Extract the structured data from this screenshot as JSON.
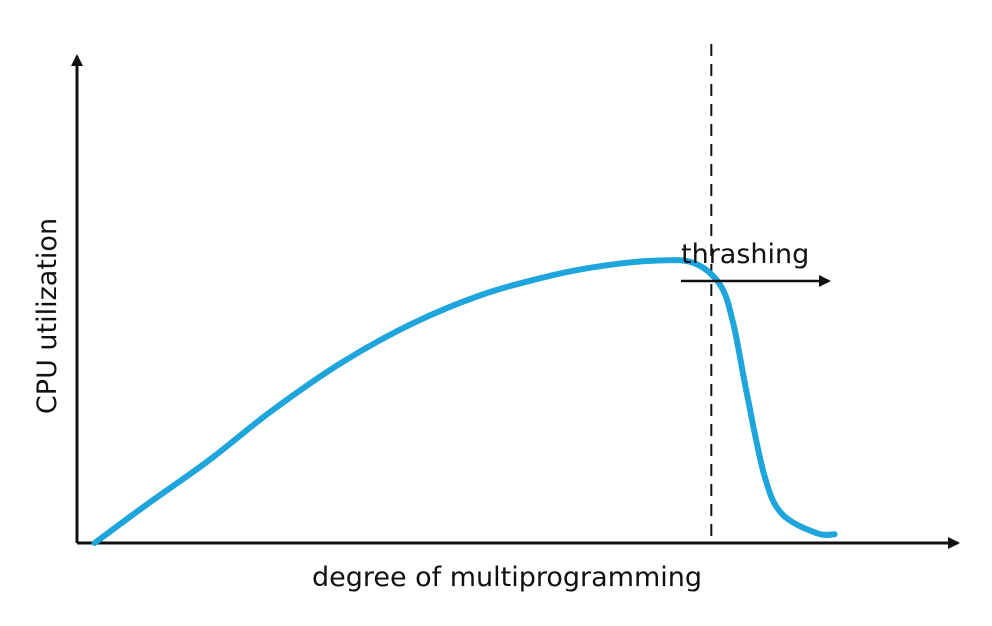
{
  "chart_data": {
    "type": "line",
    "title": "",
    "xlabel": "degree of multiprogramming",
    "ylabel": "CPU utilization",
    "grid": false,
    "series": [
      {
        "name": "",
        "color": "#1ea5dc",
        "points": [
          {
            "x": 0.02,
            "y": 0.0
          },
          {
            "x": 0.08,
            "y": 0.08
          },
          {
            "x": 0.15,
            "y": 0.17
          },
          {
            "x": 0.22,
            "y": 0.27
          },
          {
            "x": 0.3,
            "y": 0.37
          },
          {
            "x": 0.38,
            "y": 0.45
          },
          {
            "x": 0.46,
            "y": 0.51
          },
          {
            "x": 0.54,
            "y": 0.55
          },
          {
            "x": 0.6,
            "y": 0.57
          },
          {
            "x": 0.66,
            "y": 0.58
          },
          {
            "x": 0.7,
            "y": 0.575
          },
          {
            "x": 0.73,
            "y": 0.53
          },
          {
            "x": 0.745,
            "y": 0.45
          },
          {
            "x": 0.76,
            "y": 0.31
          },
          {
            "x": 0.78,
            "y": 0.14
          },
          {
            "x": 0.8,
            "y": 0.06
          },
          {
            "x": 0.84,
            "y": 0.02
          },
          {
            "x": 0.86,
            "y": 0.018
          }
        ]
      }
    ],
    "annotations": {
      "threshold_x": 0.72,
      "label": "thrashing"
    }
  }
}
